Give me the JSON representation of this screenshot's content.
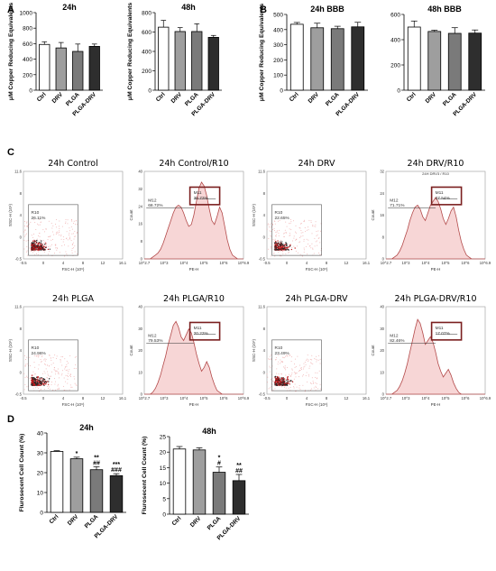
{
  "panel_labels": {
    "a": "A",
    "b": "B",
    "c": "C",
    "d": "D"
  },
  "colors": {
    "ctrl": "#ffffff",
    "drv": "#9e9e9e",
    "plga": "#7a7a7a",
    "plga_drv": "#2e2e2e",
    "hist_fill": "#f7d6d6",
    "hist_line": "#b34a4a",
    "gate_box": "#7a1f1f",
    "dot_dense": "#c0181b",
    "dot_light": "#f0b0b0"
  },
  "chart_data": [
    {
      "id": "a1",
      "type": "bar",
      "title": "24h",
      "ylabel": "μM Copper Reducing Equivalents",
      "categories": [
        "Ctrl",
        "DRV",
        "PLGA",
        "PLGA-DRV"
      ],
      "values": [
        590,
        545,
        500,
        565
      ],
      "errors": [
        35,
        70,
        95,
        30
      ],
      "ylim": [
        0,
        1000
      ],
      "yticks": [
        0,
        200,
        400,
        600,
        800,
        1000
      ]
    },
    {
      "id": "a2",
      "type": "bar",
      "title": "48h",
      "ylabel": "μM Copper Reducing Equivalents",
      "categories": [
        "Ctrl",
        "DRV",
        "PLGA",
        "PLGA-DRV"
      ],
      "values": [
        650,
        605,
        605,
        545
      ],
      "errors": [
        70,
        40,
        80,
        20
      ],
      "ylim": [
        0,
        800
      ],
      "yticks": [
        0,
        200,
        400,
        600,
        800
      ]
    },
    {
      "id": "b1",
      "type": "bar",
      "title": "24h BBB",
      "ylabel": "μM Copper Reducing Equivalents",
      "categories": [
        "Ctrl",
        "DRV",
        "PLGA",
        "PLGA-DRV"
      ],
      "values": [
        435,
        412,
        406,
        418
      ],
      "errors": [
        12,
        30,
        16,
        30
      ],
      "ylim": [
        0,
        500
      ],
      "yticks": [
        0,
        100,
        200,
        300,
        400,
        500
      ]
    },
    {
      "id": "b2",
      "type": "bar",
      "title": "48h BBB",
      "ylabel": "",
      "categories": [
        "Ctrl",
        "DRV",
        "PLGA",
        "PLGA-DRV"
      ],
      "values": [
        500,
        465,
        450,
        452
      ],
      "errors": [
        48,
        10,
        45,
        25
      ],
      "ylim": [
        0,
        600
      ],
      "yticks": [
        0,
        200,
        400,
        600
      ]
    },
    {
      "id": "d1",
      "type": "bar",
      "title": "24h",
      "ylabel": "Flurosecent Cell Count (%)",
      "categories": [
        "Ctrl",
        "DRV",
        "PLGA",
        "PLGA-DRV"
      ],
      "values": [
        30.7,
        27.0,
        21.5,
        18.5
      ],
      "errors": [
        0.4,
        0.8,
        1.5,
        1.0
      ],
      "annotations": [
        [],
        [
          "*"
        ],
        [
          "**",
          "##"
        ],
        [
          "***",
          "###"
        ]
      ],
      "ylim": [
        0,
        40
      ],
      "yticks": [
        0,
        10,
        20,
        30,
        40
      ]
    },
    {
      "id": "d2",
      "type": "bar",
      "title": "48h",
      "ylabel": "Flurosecent Cell  Count (%)",
      "categories": [
        "Ctrl",
        "DRV",
        "PLGA",
        "PLGA-DRV"
      ],
      "values": [
        21.0,
        20.7,
        13.5,
        10.8
      ],
      "errors": [
        0.8,
        0.7,
        1.7,
        2.0
      ],
      "annotations": [
        [],
        [],
        [
          "*",
          "#"
        ],
        [
          "**",
          "##"
        ]
      ],
      "ylim": [
        0,
        25
      ],
      "yticks": [
        0,
        5,
        10,
        15,
        20,
        25
      ]
    }
  ],
  "flow_panels": [
    {
      "id": "c1",
      "kind": "scatter",
      "title": "24h Control",
      "gate_label": "R10",
      "gate_pct": "26.11%",
      "xlabel": "FSC-H (10⁶)",
      "ylabel": "SSC-H (10⁶)",
      "xticks": [
        "-0.5",
        "0",
        "4",
        "8",
        "12",
        "16.1"
      ],
      "yticks": [
        "11.6",
        "8",
        "4",
        "0",
        "-0.5"
      ]
    },
    {
      "id": "c2",
      "kind": "histogram",
      "title": "24h Control/R10",
      "ylabel": "Count",
      "xlabel": "PE-H",
      "m12_label": "M12",
      "m12_pct": "68.72%",
      "m11_label": "M11",
      "m11_pct": "30.73%",
      "yticks": [
        "0",
        "8",
        "16",
        "24",
        "32",
        "40"
      ],
      "xticks": [
        "10^2.7",
        "10^3",
        "10^4",
        "10^5",
        "10^6",
        "10^6.9"
      ],
      "profile": [
        0,
        1,
        2,
        3,
        5,
        8,
        12,
        16,
        20,
        24,
        27,
        28,
        27,
        24,
        20,
        17,
        18,
        23,
        30,
        37,
        40,
        38,
        33,
        26,
        20,
        18,
        22,
        27,
        24,
        17,
        10,
        5,
        2,
        1,
        0
      ]
    },
    {
      "id": "c3",
      "kind": "scatter",
      "title": "24h DRV",
      "gate_label": "R10",
      "gate_pct": "22.65%",
      "xlabel": "FSC-H (10⁶)",
      "ylabel": "SSC-H (10⁶)",
      "xticks": [
        "-0.5",
        "0",
        "4",
        "8",
        "12",
        "16.1"
      ],
      "yticks": [
        "11.6",
        "8",
        "4",
        "0",
        "-0.5"
      ]
    },
    {
      "id": "c4",
      "kind": "histogram",
      "title": "24h DRV/R10",
      "subtitle": "24H DRV3 / R10",
      "ylabel": "Count",
      "xlabel": "PE-H",
      "m12_label": "M12",
      "m12_pct": "71.71%",
      "m11_label": "M11",
      "m11_pct": "27.54%",
      "yticks": [
        "0",
        "8",
        "16",
        "24",
        "32"
      ],
      "xticks": [
        "10^2.7",
        "10^3",
        "10^4",
        "10^5",
        "10^6",
        "10^6.9"
      ],
      "profile": [
        0,
        1,
        2,
        4,
        7,
        11,
        15,
        20,
        24,
        27,
        28,
        26,
        22,
        20,
        24,
        28,
        30,
        32,
        30,
        26,
        21,
        18,
        21,
        25,
        27,
        22,
        15,
        9,
        5,
        2,
        1,
        0,
        0,
        0,
        0
      ]
    },
    {
      "id": "c5",
      "kind": "scatter",
      "title": "24h PLGA",
      "gate_label": "R10",
      "gate_pct": "24.96%",
      "xlabel": "FSC-H (10⁶)",
      "ylabel": "SSC-H (10⁶)",
      "xticks": [
        "-0.5",
        "0",
        "4",
        "8",
        "12",
        "16.1"
      ],
      "yticks": [
        "11.6",
        "8",
        "4",
        "0",
        "-0.5"
      ]
    },
    {
      "id": "c6",
      "kind": "histogram",
      "title": "24h PLGA/R10",
      "ylabel": "Count",
      "xlabel": "PE-H",
      "m12_label": "M12",
      "m12_pct": "79.53%",
      "m11_label": "M11",
      "m11_pct": "20.23%",
      "yticks": [
        "0",
        "10",
        "20",
        "30",
        "40"
      ],
      "xticks": [
        "10^2.7",
        "10^3",
        "10^4",
        "10^5",
        "10^6",
        "10^6.9"
      ],
      "profile": [
        0,
        1,
        3,
        6,
        10,
        15,
        20,
        26,
        31,
        36,
        38,
        35,
        30,
        28,
        31,
        34,
        32,
        27,
        21,
        16,
        12,
        14,
        17,
        14,
        9,
        5,
        2,
        1,
        0,
        0,
        0,
        0,
        0,
        0,
        0
      ]
    },
    {
      "id": "c7",
      "kind": "scatter",
      "title": "24h PLGA-DRV",
      "gate_label": "R10",
      "gate_pct": "23.49%",
      "xlabel": "FSC-H (10⁶)",
      "ylabel": "SSC-H (10⁶)",
      "xticks": [
        "-0.5",
        "0",
        "4",
        "8",
        "12",
        "16.1"
      ],
      "yticks": [
        "11.6",
        "8",
        "4",
        "0",
        "-0.5"
      ]
    },
    {
      "id": "c8",
      "kind": "histogram",
      "title": "24h PLGA-DRV/R10",
      "ylabel": "Count",
      "xlabel": "PE-H",
      "m12_label": "M12",
      "m12_pct": "82.46%",
      "m11_label": "M11",
      "m11_pct": "17.07%",
      "yticks": [
        "0",
        "10",
        "20",
        "30",
        "40"
      ],
      "xticks": [
        "10^2.7",
        "10^3",
        "10^4",
        "10^5",
        "10^6",
        "10^6.9"
      ],
      "profile": [
        0,
        1,
        2,
        4,
        7,
        11,
        16,
        22,
        28,
        34,
        39,
        37,
        32,
        26,
        28,
        30,
        27,
        22,
        16,
        12,
        9,
        11,
        13,
        10,
        6,
        3,
        1,
        0,
        0,
        0,
        0,
        0,
        0,
        0,
        0
      ]
    }
  ]
}
